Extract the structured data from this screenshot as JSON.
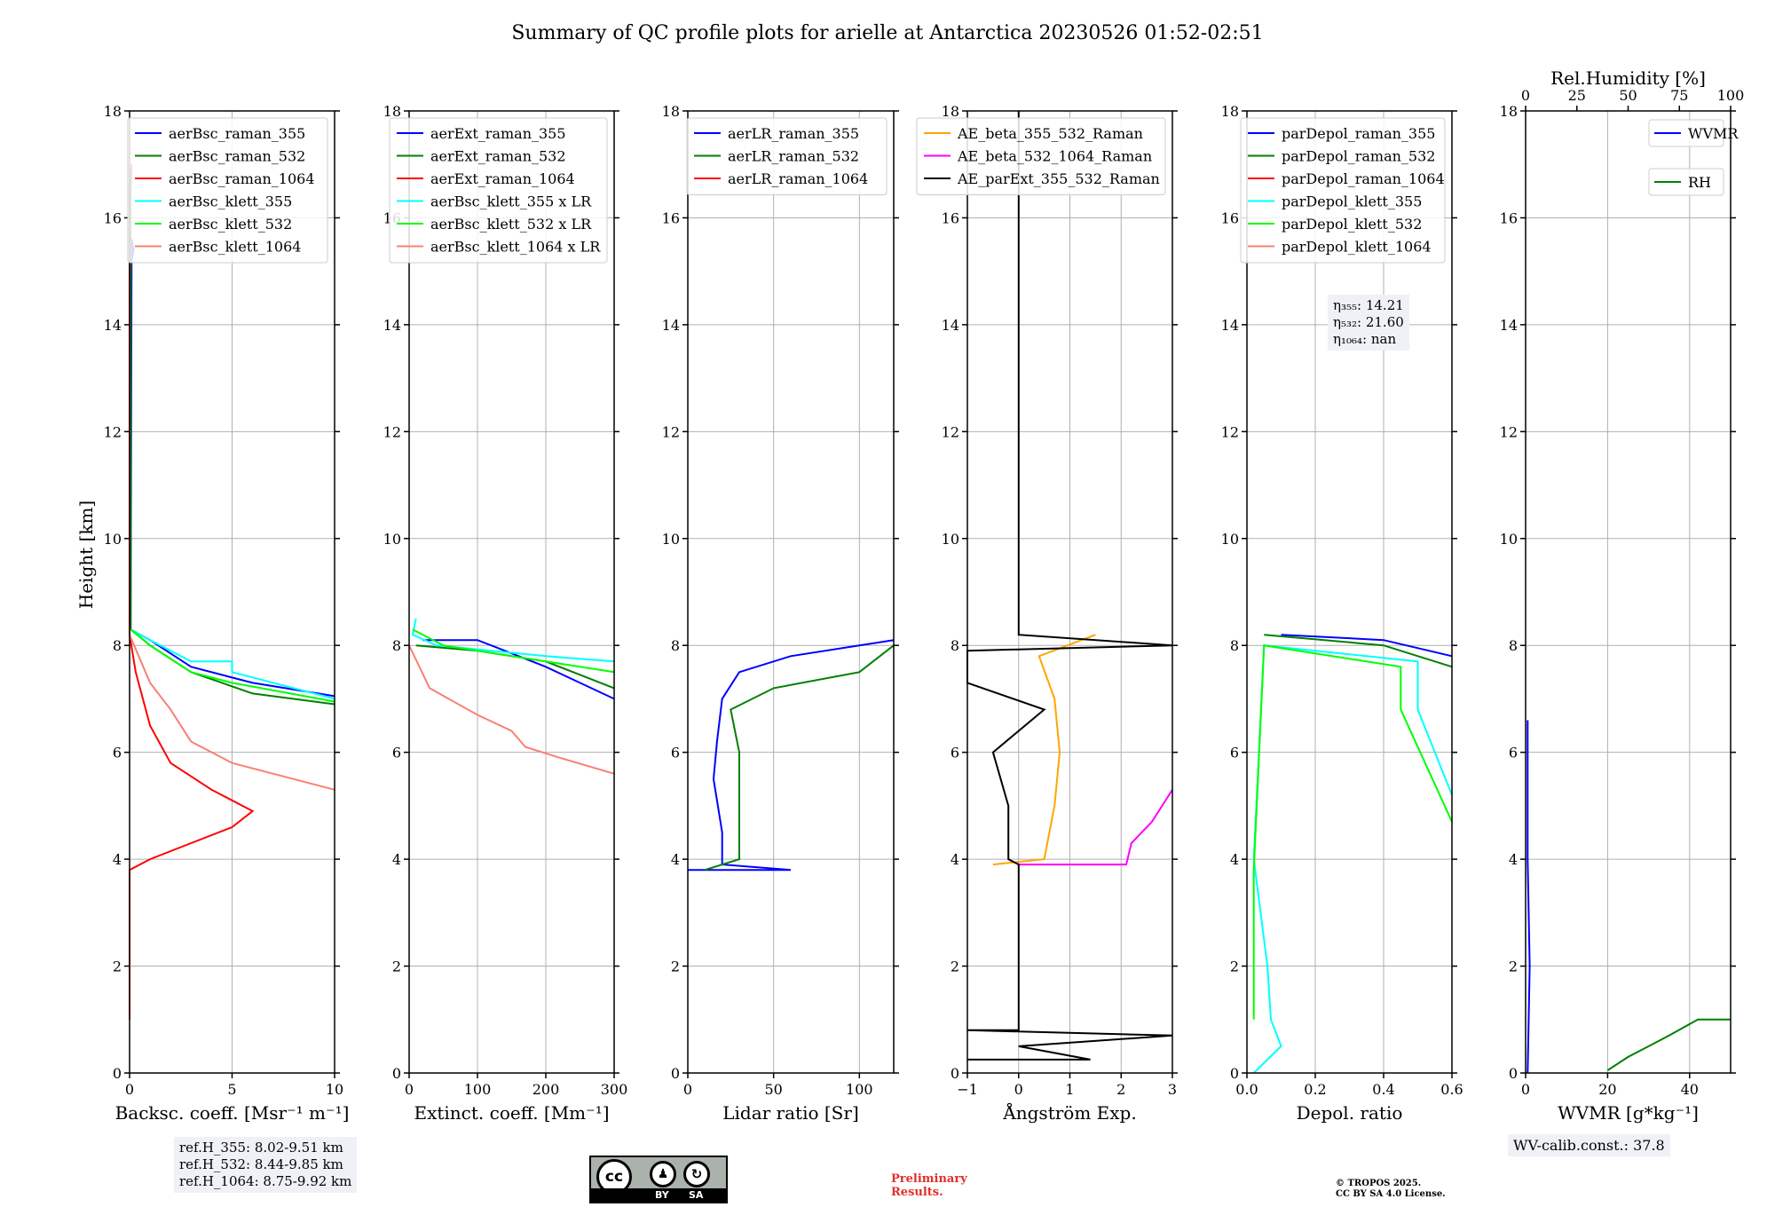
{
  "title": "Summary of QC profile plots for arielle at Antarctica 20230526 01:52-02:51",
  "ylabel": "Height [km]",
  "chart_data": [
    {
      "type": "line",
      "xlabel": "Backsc. coeff. [Msr⁻¹ m⁻¹]",
      "xlim": [
        0,
        10
      ],
      "xticks": [
        "0",
        "5",
        "10"
      ],
      "ylim": [
        0,
        18
      ],
      "legend_position": "top-right",
      "series": [
        {
          "name": "aerBsc_raman_355",
          "color": "#0000ff",
          "points": [
            [
              0.1,
              15.2
            ],
            [
              0.2,
              15.4
            ],
            [
              0.1,
              15.6
            ],
            [
              0.05,
              8.3
            ],
            [
              1,
              8.1
            ],
            [
              3,
              7.6
            ],
            [
              6,
              7.3
            ],
            [
              10,
              7.05
            ]
          ]
        },
        {
          "name": "aerBsc_raman_532",
          "color": "#008000",
          "points": [
            [
              0.1,
              16.9
            ],
            [
              0.05,
              16.5
            ],
            [
              0.05,
              8.3
            ],
            [
              1,
              8.0
            ],
            [
              3,
              7.5
            ],
            [
              6,
              7.1
            ],
            [
              10,
              6.9
            ]
          ]
        },
        {
          "name": "aerBsc_raman_1064",
          "color": "#ff0000",
          "points": [
            [
              0.1,
              17.0
            ],
            [
              0,
              16.6
            ],
            [
              0,
              8.2
            ],
            [
              0.3,
              7.5
            ],
            [
              1,
              6.5
            ],
            [
              2,
              5.8
            ],
            [
              4,
              5.3
            ],
            [
              6,
              4.9
            ],
            [
              5,
              4.6
            ],
            [
              3,
              4.3
            ],
            [
              1,
              4.0
            ],
            [
              0,
              3.8
            ],
            [
              0,
              1.0
            ]
          ]
        },
        {
          "name": "aerBsc_klett_355",
          "color": "#00ffff",
          "points": [
            [
              0.05,
              8.3
            ],
            [
              1,
              8.1
            ],
            [
              3,
              7.7
            ],
            [
              5,
              7.7
            ],
            [
              5,
              7.5
            ],
            [
              10,
              7.0
            ]
          ]
        },
        {
          "name": "aerBsc_klett_532",
          "color": "#00ff00",
          "points": [
            [
              0.05,
              8.3
            ],
            [
              1,
              8.0
            ],
            [
              3,
              7.5
            ],
            [
              5,
              7.3
            ],
            [
              10,
              6.95
            ]
          ]
        },
        {
          "name": "aerBsc_klett_1064",
          "color": "#fa8072",
          "points": [
            [
              0,
              8.2
            ],
            [
              1,
              7.3
            ],
            [
              2,
              6.8
            ],
            [
              3,
              6.2
            ],
            [
              5,
              5.8
            ],
            [
              8,
              5.5
            ],
            [
              10,
              5.3
            ]
          ]
        }
      ]
    },
    {
      "type": "line",
      "xlabel": "Extinct. coeff. [Mm⁻¹]",
      "xlim": [
        0,
        300
      ],
      "xticks": [
        "0",
        "100",
        "200",
        "300"
      ],
      "ylim": [
        0,
        18
      ],
      "legend_position": "top-right",
      "series": [
        {
          "name": "aerExt_raman_355",
          "color": "#0000ff",
          "points": [
            [
              20,
              8.1
            ],
            [
              100,
              8.1
            ],
            [
              140,
              7.9
            ],
            [
              200,
              7.6
            ],
            [
              250,
              7.3
            ],
            [
              300,
              7.0
            ]
          ]
        },
        {
          "name": "aerExt_raman_532",
          "color": "#008000",
          "points": [
            [
              10,
              8.0
            ],
            [
              100,
              7.9
            ],
            [
              200,
              7.7
            ],
            [
              300,
              7.2
            ]
          ]
        },
        {
          "name": "aerExt_raman_1064",
          "color": "#ff0000",
          "points": []
        },
        {
          "name": "aerBsc_klett_355 x LR",
          "color": "#00ffff",
          "points": [
            [
              10,
              8.5
            ],
            [
              5,
              8.2
            ],
            [
              40,
              8.0
            ],
            [
              200,
              7.8
            ],
            [
              300,
              7.7
            ]
          ]
        },
        {
          "name": "aerBsc_klett_532 x LR",
          "color": "#00ff00",
          "points": [
            [
              5,
              8.3
            ],
            [
              50,
              8.0
            ],
            [
              200,
              7.7
            ],
            [
              300,
              7.5
            ]
          ]
        },
        {
          "name": "aerBsc_klett_1064 x LR",
          "color": "#fa8072",
          "points": [
            [
              0,
              8.0
            ],
            [
              30,
              7.2
            ],
            [
              100,
              6.7
            ],
            [
              150,
              6.4
            ],
            [
              170,
              6.1
            ],
            [
              220,
              5.9
            ],
            [
              300,
              5.6
            ]
          ]
        }
      ]
    },
    {
      "type": "line",
      "xlabel": "Lidar ratio [Sr]",
      "xlim": [
        0,
        120
      ],
      "xticks": [
        "0",
        "50",
        "100"
      ],
      "ylim": [
        0,
        18
      ],
      "legend_position": "top-right",
      "series": [
        {
          "name": "aerLR_raman_355",
          "color": "#0000ff",
          "points": [
            [
              0,
              3.8
            ],
            [
              60,
              3.8
            ],
            [
              20,
              3.9
            ],
            [
              20,
              4.5
            ],
            [
              15,
              5.5
            ],
            [
              17,
              6.2
            ],
            [
              20,
              7.0
            ],
            [
              30,
              7.5
            ],
            [
              60,
              7.8
            ],
            [
              100,
              8.0
            ],
            [
              120,
              8.1
            ]
          ]
        },
        {
          "name": "aerLR_raman_532",
          "color": "#008000",
          "points": [
            [
              10,
              3.8
            ],
            [
              30,
              4.0
            ],
            [
              30,
              5.0
            ],
            [
              30,
              6.0
            ],
            [
              25,
              6.8
            ],
            [
              50,
              7.2
            ],
            [
              100,
              7.5
            ],
            [
              120,
              8.0
            ]
          ]
        },
        {
          "name": "aerLR_raman_1064",
          "color": "#ff0000",
          "points": []
        }
      ]
    },
    {
      "type": "line",
      "xlabel": "Ångström Exp.",
      "xlim": [
        -1,
        3
      ],
      "xticks": [
        "−1",
        "0",
        "1",
        "2",
        "3"
      ],
      "ylim": [
        0,
        18
      ],
      "legend_position": "top-right",
      "series": [
        {
          "name": "AE_beta_355_532_Raman",
          "color": "#ffa500",
          "points": [
            [
              -0.5,
              3.9
            ],
            [
              0.5,
              4.0
            ],
            [
              0.7,
              5.0
            ],
            [
              0.8,
              6.0
            ],
            [
              0.7,
              7.0
            ],
            [
              0.4,
              7.8
            ],
            [
              1.5,
              8.2
            ]
          ]
        },
        {
          "name": "AE_beta_532_1064_Raman",
          "color": "#ff00ff",
          "points": [
            [
              0,
              3.9
            ],
            [
              2.1,
              3.9
            ],
            [
              2.2,
              4.3
            ],
            [
              2.6,
              4.7
            ],
            [
              3,
              5.3
            ]
          ]
        },
        {
          "name": "AE_parExt_355_532_Raman",
          "color": "#000000",
          "points": [
            [
              -1,
              0.25
            ],
            [
              1.4,
              0.25
            ],
            [
              0,
              0.5
            ],
            [
              3,
              0.7
            ],
            [
              -1,
              0.8
            ],
            [
              0,
              0.8
            ],
            [
              0,
              3.9
            ],
            [
              -0.2,
              4.0
            ],
            [
              -0.2,
              5.0
            ],
            [
              -0.5,
              6.0
            ],
            [
              0.5,
              6.8
            ],
            [
              -1,
              7.3
            ],
            [
              -1,
              7.9
            ],
            [
              3,
              8.0
            ],
            [
              0,
              8.2
            ],
            [
              0,
              18
            ]
          ]
        }
      ]
    },
    {
      "type": "line",
      "xlabel": "Depol. ratio",
      "xlim": [
        0,
        0.6
      ],
      "xticks": [
        "0.0",
        "0.2",
        "0.4",
        "0.6"
      ],
      "ylim": [
        0,
        18
      ],
      "legend_position": "top-right",
      "series": [
        {
          "name": "parDepol_raman_355",
          "color": "#0000ff",
          "points": [
            [
              0.1,
              8.2
            ],
            [
              0.4,
              8.1
            ],
            [
              0.6,
              7.8
            ]
          ]
        },
        {
          "name": "parDepol_raman_532",
          "color": "#008000",
          "points": [
            [
              0.05,
              8.2
            ],
            [
              0.4,
              8.0
            ],
            [
              0.6,
              7.6
            ]
          ]
        },
        {
          "name": "parDepol_raman_1064",
          "color": "#ff0000",
          "points": []
        },
        {
          "name": "parDepol_klett_355",
          "color": "#00ffff",
          "points": [
            [
              0.02,
              0
            ],
            [
              0.1,
              0.5
            ],
            [
              0.07,
              1.0
            ],
            [
              0.06,
              2.0
            ],
            [
              0.02,
              4.0
            ],
            [
              0.05,
              8.0
            ],
            [
              0.5,
              7.7
            ],
            [
              0.5,
              6.8
            ],
            [
              0.6,
              5.2
            ]
          ]
        },
        {
          "name": "parDepol_klett_532",
          "color": "#00ff00",
          "points": [
            [
              0.02,
              1.0
            ],
            [
              0.02,
              3.8
            ],
            [
              0.05,
              8.0
            ],
            [
              0.45,
              7.6
            ],
            [
              0.45,
              6.8
            ],
            [
              0.6,
              4.7
            ]
          ]
        },
        {
          "name": "parDepol_klett_1064",
          "color": "#fa8072",
          "points": []
        }
      ]
    },
    {
      "type": "line",
      "xlabel": "WVMR [g*kg⁻¹]",
      "xlim": [
        0,
        50
      ],
      "xticks": [
        "0",
        "20",
        "40"
      ],
      "top_axis": {
        "label": "Rel.Humidity [%]",
        "xlim": [
          0,
          100
        ],
        "xticks": [
          "0",
          "25",
          "50",
          "75",
          "100"
        ]
      },
      "ylim": [
        0,
        18
      ],
      "legend_position": "top-right",
      "series": [
        {
          "name": "WVMR",
          "color": "#0000ff",
          "points": [
            [
              0.5,
              0
            ],
            [
              1,
              2
            ],
            [
              0.5,
              4
            ],
            [
              0.5,
              6.6
            ]
          ]
        },
        {
          "name": "RH",
          "color": "#008000",
          "points": [
            [
              20,
              0.05
            ],
            [
              25,
              0.3
            ],
            [
              30,
              0.5
            ],
            [
              35,
              0.7
            ],
            [
              42,
              1.0
            ],
            [
              50,
              1.0
            ]
          ]
        }
      ]
    }
  ],
  "annotations": {
    "eta": [
      "η₃₅₅: 14.21",
      "η₅₃₂: 21.60",
      "η₁₀₆₄: nan"
    ],
    "refh": [
      "ref.H_355: 8.02-9.51 km",
      "ref.H_532: 8.44-9.85 km",
      "ref.H_1064: 8.75-9.92 km"
    ],
    "wvcal": "WV-calib.const.: 37.8",
    "license_by": "BY",
    "license_sa": "SA",
    "prelim": [
      "Preliminary",
      "Results."
    ],
    "copyright": [
      "© TROPOS 2025.",
      "CC BY SA 4.0 License."
    ]
  }
}
